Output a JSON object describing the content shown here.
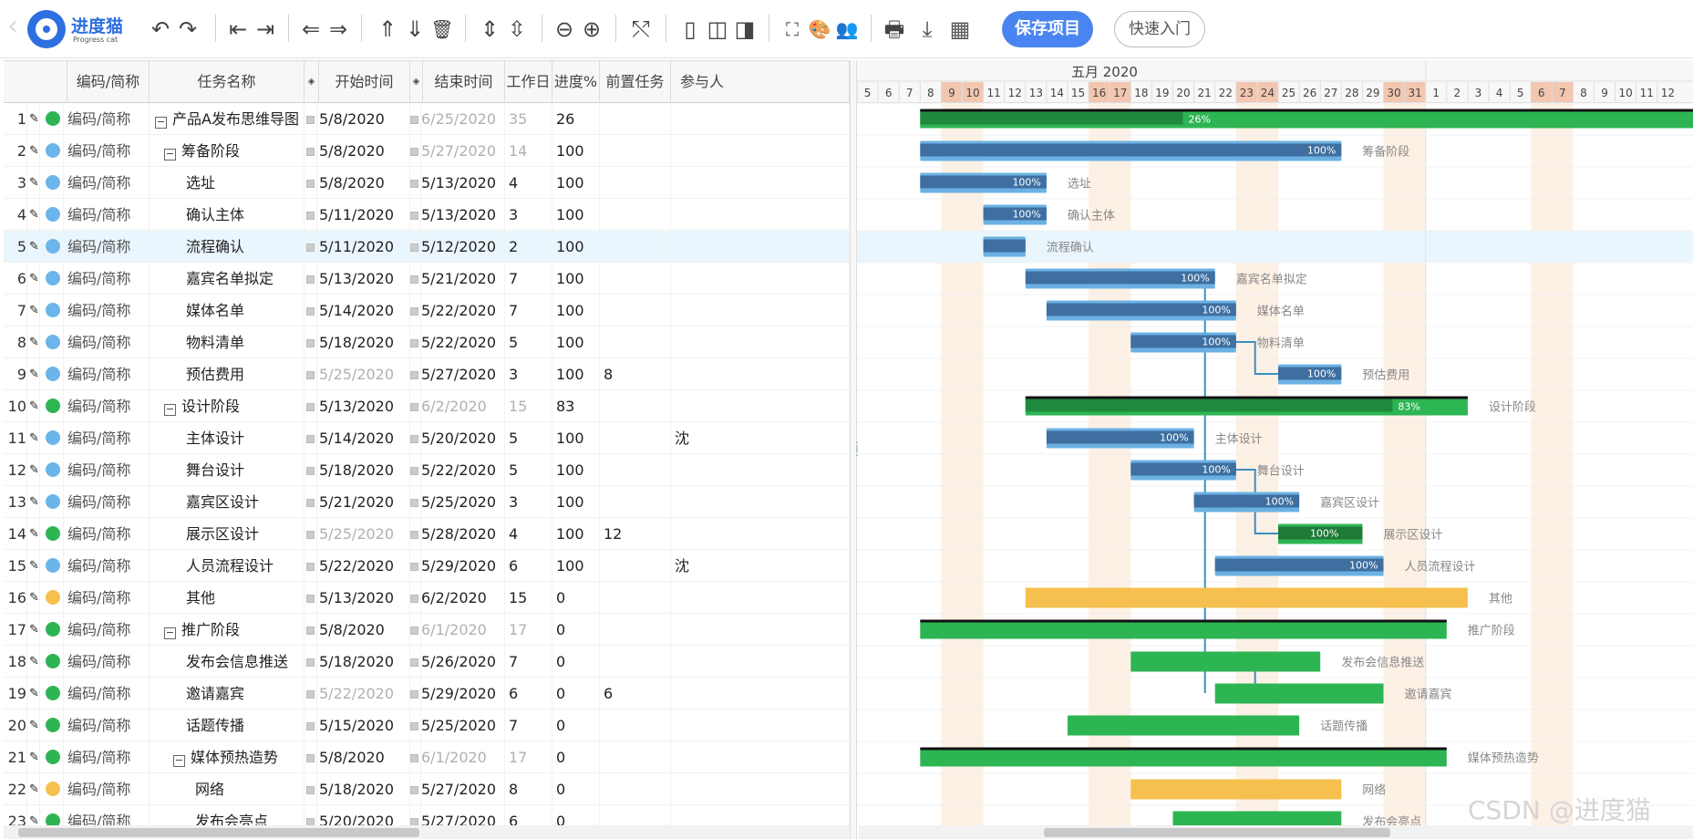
{
  "app": {
    "logo_text": "进度猫",
    "logo_sub": "Progress cat"
  },
  "toolbar": {
    "save_label": "保存项目",
    "quick_label": "快速入门",
    "icons": {
      "undo": "↶",
      "redo": "↷",
      "outdent": "⇤",
      "indent": "⇥",
      "move_left": "⇐",
      "move_right": "⇒",
      "move_up": "⇑",
      "move_down": "⇓",
      "delete": "🗑",
      "expand": "⇕",
      "collapse": "⇳",
      "zoom_out": "⊖",
      "zoom_in": "⊕",
      "link": "⤲",
      "view1": "▯",
      "view2": "◫",
      "view3": "◨",
      "fullscreen": "⛶",
      "palette": "🎨",
      "people": "👥",
      "print": "🖶",
      "download": "⤓",
      "excel": "▦"
    }
  },
  "columns": {
    "code": "编码/简称",
    "name": "任务名称",
    "start": "开始时间",
    "end": "结束时间",
    "duration": "工作日",
    "progress": "进度%",
    "predecessor": "前置任务",
    "participant": "参与人"
  },
  "colors": {
    "green": "#2db553",
    "blue": "#6bb5ea",
    "yellow": "#f5c04e",
    "bar_blue": "#3e6fa0",
    "bar_light": "#6cb1e3",
    "weekend": "#fdf0e4"
  },
  "rows": [
    {
      "num": "1",
      "dot": "green",
      "code": "编码/简称",
      "name": "产品A发布思维导图",
      "indent": 0,
      "exp": true,
      "start": "5/8/2020",
      "start_gray": false,
      "end": "6/25/2020",
      "end_gray": true,
      "dur": "35",
      "dur_gray": true,
      "pct": "26",
      "pre": "",
      "part": ""
    },
    {
      "num": "2",
      "dot": "blue",
      "code": "编码/简称",
      "name": "筹备阶段",
      "indent": 1,
      "exp": true,
      "start": "5/8/2020",
      "start_gray": false,
      "end": "5/27/2020",
      "end_gray": true,
      "dur": "14",
      "dur_gray": true,
      "pct": "100",
      "pre": "",
      "part": ""
    },
    {
      "num": "3",
      "dot": "blue",
      "code": "编码/简称",
      "name": "选址",
      "indent": 2,
      "exp": false,
      "start": "5/8/2020",
      "start_gray": false,
      "end": "5/13/2020",
      "end_gray": false,
      "dur": "4",
      "dur_gray": false,
      "pct": "100",
      "pre": "",
      "part": ""
    },
    {
      "num": "4",
      "dot": "blue",
      "code": "编码/简称",
      "name": "确认主体",
      "indent": 2,
      "exp": false,
      "start": "5/11/2020",
      "start_gray": false,
      "end": "5/13/2020",
      "end_gray": false,
      "dur": "3",
      "dur_gray": false,
      "pct": "100",
      "pre": "",
      "part": ""
    },
    {
      "num": "5",
      "dot": "blue",
      "code": "编码/简称",
      "name": "流程确认",
      "indent": 2,
      "exp": false,
      "start": "5/11/2020",
      "start_gray": false,
      "end": "5/12/2020",
      "end_gray": false,
      "dur": "2",
      "dur_gray": false,
      "pct": "100",
      "pre": "",
      "part": "",
      "sel": true
    },
    {
      "num": "6",
      "dot": "blue",
      "code": "编码/简称",
      "name": "嘉宾名单拟定",
      "indent": 2,
      "exp": false,
      "start": "5/13/2020",
      "start_gray": false,
      "end": "5/21/2020",
      "end_gray": false,
      "dur": "7",
      "dur_gray": false,
      "pct": "100",
      "pre": "",
      "part": ""
    },
    {
      "num": "7",
      "dot": "blue",
      "code": "编码/简称",
      "name": "媒体名单",
      "indent": 2,
      "exp": false,
      "start": "5/14/2020",
      "start_gray": false,
      "end": "5/22/2020",
      "end_gray": false,
      "dur": "7",
      "dur_gray": false,
      "pct": "100",
      "pre": "",
      "part": ""
    },
    {
      "num": "8",
      "dot": "blue",
      "code": "编码/简称",
      "name": "物料清单",
      "indent": 2,
      "exp": false,
      "start": "5/18/2020",
      "start_gray": false,
      "end": "5/22/2020",
      "end_gray": false,
      "dur": "5",
      "dur_gray": false,
      "pct": "100",
      "pre": "",
      "part": ""
    },
    {
      "num": "9",
      "dot": "blue",
      "code": "编码/简称",
      "name": "预估费用",
      "indent": 2,
      "exp": false,
      "start": "5/25/2020",
      "start_gray": true,
      "end": "5/27/2020",
      "end_gray": false,
      "dur": "3",
      "dur_gray": false,
      "pct": "100",
      "pre": "8",
      "part": ""
    },
    {
      "num": "10",
      "dot": "green",
      "code": "编码/简称",
      "name": "设计阶段",
      "indent": 1,
      "exp": true,
      "start": "5/13/2020",
      "start_gray": false,
      "end": "6/2/2020",
      "end_gray": true,
      "dur": "15",
      "dur_gray": true,
      "pct": "83",
      "pre": "",
      "part": ""
    },
    {
      "num": "11",
      "dot": "blue",
      "code": "编码/简称",
      "name": "主体设计",
      "indent": 2,
      "exp": false,
      "start": "5/14/2020",
      "start_gray": false,
      "end": "5/20/2020",
      "end_gray": false,
      "dur": "5",
      "dur_gray": false,
      "pct": "100",
      "pre": "",
      "part": "沈"
    },
    {
      "num": "12",
      "dot": "blue",
      "code": "编码/简称",
      "name": "舞台设计",
      "indent": 2,
      "exp": false,
      "start": "5/18/2020",
      "start_gray": false,
      "end": "5/22/2020",
      "end_gray": false,
      "dur": "5",
      "dur_gray": false,
      "pct": "100",
      "pre": "",
      "part": ""
    },
    {
      "num": "13",
      "dot": "blue",
      "code": "编码/简称",
      "name": "嘉宾区设计",
      "indent": 2,
      "exp": false,
      "start": "5/21/2020",
      "start_gray": false,
      "end": "5/25/2020",
      "end_gray": false,
      "dur": "3",
      "dur_gray": false,
      "pct": "100",
      "pre": "",
      "part": ""
    },
    {
      "num": "14",
      "dot": "green",
      "code": "编码/简称",
      "name": "展示区设计",
      "indent": 2,
      "exp": false,
      "start": "5/25/2020",
      "start_gray": true,
      "end": "5/28/2020",
      "end_gray": false,
      "dur": "4",
      "dur_gray": false,
      "pct": "100",
      "pre": "12",
      "part": ""
    },
    {
      "num": "15",
      "dot": "blue",
      "code": "编码/简称",
      "name": "人员流程设计",
      "indent": 2,
      "exp": false,
      "start": "5/22/2020",
      "start_gray": false,
      "end": "5/29/2020",
      "end_gray": false,
      "dur": "6",
      "dur_gray": false,
      "pct": "100",
      "pre": "",
      "part": "沈"
    },
    {
      "num": "16",
      "dot": "yellow",
      "code": "编码/简称",
      "name": "其他",
      "indent": 2,
      "exp": false,
      "start": "5/13/2020",
      "start_gray": false,
      "end": "6/2/2020",
      "end_gray": false,
      "dur": "15",
      "dur_gray": false,
      "pct": "0",
      "pre": "",
      "part": ""
    },
    {
      "num": "17",
      "dot": "green",
      "code": "编码/简称",
      "name": "推广阶段",
      "indent": 1,
      "exp": true,
      "start": "5/8/2020",
      "start_gray": false,
      "end": "6/1/2020",
      "end_gray": true,
      "dur": "17",
      "dur_gray": true,
      "pct": "0",
      "pre": "",
      "part": ""
    },
    {
      "num": "18",
      "dot": "green",
      "code": "编码/简称",
      "name": "发布会信息推送",
      "indent": 2,
      "exp": false,
      "start": "5/18/2020",
      "start_gray": false,
      "end": "5/26/2020",
      "end_gray": false,
      "dur": "7",
      "dur_gray": false,
      "pct": "0",
      "pre": "",
      "part": ""
    },
    {
      "num": "19",
      "dot": "green",
      "code": "编码/简称",
      "name": "邀请嘉宾",
      "indent": 2,
      "exp": false,
      "start": "5/22/2020",
      "start_gray": true,
      "end": "5/29/2020",
      "end_gray": false,
      "dur": "6",
      "dur_gray": false,
      "pct": "0",
      "pre": "6",
      "part": ""
    },
    {
      "num": "20",
      "dot": "green",
      "code": "编码/简称",
      "name": "话题传播",
      "indent": 2,
      "exp": false,
      "start": "5/15/2020",
      "start_gray": false,
      "end": "5/25/2020",
      "end_gray": false,
      "dur": "7",
      "dur_gray": false,
      "pct": "0",
      "pre": "",
      "part": ""
    },
    {
      "num": "21",
      "dot": "green",
      "code": "编码/简称",
      "name": "媒体预热造势",
      "indent": 2,
      "exp": true,
      "start": "5/8/2020",
      "start_gray": false,
      "end": "6/1/2020",
      "end_gray": true,
      "dur": "17",
      "dur_gray": true,
      "pct": "0",
      "pre": "",
      "part": ""
    },
    {
      "num": "22",
      "dot": "yellow",
      "code": "编码/简称",
      "name": "网络",
      "indent": 3,
      "exp": false,
      "start": "5/18/2020",
      "start_gray": false,
      "end": "5/27/2020",
      "end_gray": false,
      "dur": "8",
      "dur_gray": false,
      "pct": "0",
      "pre": "",
      "part": ""
    },
    {
      "num": "23",
      "dot": "green",
      "code": "编码/简称",
      "name": "发布会亮点",
      "indent": 3,
      "exp": false,
      "start": "5/20/2020",
      "start_gray": false,
      "end": "5/27/2020",
      "end_gray": false,
      "dur": "6",
      "dur_gray": false,
      "pct": "0",
      "pre": "",
      "part": ""
    }
  ],
  "timeline": {
    "month_label": "五月 2020",
    "days": [
      "5",
      "6",
      "7",
      "8",
      "9",
      "10",
      "11",
      "12",
      "13",
      "14",
      "15",
      "16",
      "17",
      "18",
      "19",
      "20",
      "21",
      "22",
      "23",
      "24",
      "25",
      "26",
      "27",
      "28",
      "29",
      "30",
      "31",
      "1",
      "2",
      "3",
      "4",
      "5",
      "6",
      "7",
      "8",
      "9",
      "10",
      "11",
      "12"
    ],
    "weekend_days": [
      "9",
      "10",
      "16",
      "17",
      "23",
      "24",
      "30",
      "31",
      "6",
      "7"
    ]
  },
  "gantt_bars": [
    {
      "row": 0,
      "type": "summary",
      "start": "5/8",
      "end": "6/25",
      "pct": "26%",
      "label": ""
    },
    {
      "row": 1,
      "type": "task",
      "start": "5/8",
      "end": "5/27",
      "pct": "100%",
      "label": "筹备阶段"
    },
    {
      "row": 2,
      "type": "task",
      "start": "5/8",
      "end": "5/13",
      "pct": "100%",
      "label": "选址"
    },
    {
      "row": 3,
      "type": "task",
      "start": "5/11",
      "end": "5/13",
      "pct": "100%",
      "label": "确认主体"
    },
    {
      "row": 4,
      "type": "task",
      "start": "5/11",
      "end": "5/12",
      "pct": "",
      "label": "流程确认"
    },
    {
      "row": 5,
      "type": "task",
      "start": "5/13",
      "end": "5/21",
      "pct": "100%",
      "label": "嘉宾名单拟定"
    },
    {
      "row": 6,
      "type": "task",
      "start": "5/14",
      "end": "5/22",
      "pct": "100%",
      "label": "媒体名单"
    },
    {
      "row": 7,
      "type": "task",
      "start": "5/18",
      "end": "5/22",
      "pct": "100%",
      "label": "物料清单"
    },
    {
      "row": 8,
      "type": "task",
      "start": "5/25",
      "end": "5/27",
      "pct": "100%",
      "label": "预估费用"
    },
    {
      "row": 9,
      "type": "summary",
      "start": "5/13",
      "end": "6/2",
      "pct": "83%",
      "label": "设计阶段"
    },
    {
      "row": 10,
      "type": "task",
      "start": "5/14",
      "end": "5/20",
      "pct": "100%",
      "label": "主体设计"
    },
    {
      "row": 11,
      "type": "task",
      "start": "5/18",
      "end": "5/22",
      "pct": "100%",
      "label": "舞台设计"
    },
    {
      "row": 12,
      "type": "task",
      "start": "5/21",
      "end": "5/25",
      "pct": "100%",
      "label": "嘉宾区设计"
    },
    {
      "row": 13,
      "type": "green",
      "start": "5/25",
      "end": "5/28",
      "pct": "100%",
      "label": "展示区设计"
    },
    {
      "row": 14,
      "type": "task",
      "start": "5/22",
      "end": "5/29",
      "pct": "100%",
      "label": "人员流程设计"
    },
    {
      "row": 15,
      "type": "yellow",
      "start": "5/13",
      "end": "6/2",
      "pct": "",
      "label": "其他"
    },
    {
      "row": 16,
      "type": "gsummary",
      "start": "5/8",
      "end": "6/1",
      "pct": "",
      "label": "推广阶段"
    },
    {
      "row": 17,
      "type": "plain",
      "start": "5/18",
      "end": "5/26",
      "pct": "",
      "label": "发布会信息推送"
    },
    {
      "row": 18,
      "type": "plain",
      "start": "5/22",
      "end": "5/29",
      "pct": "",
      "label": "邀请嘉宾"
    },
    {
      "row": 19,
      "type": "plain",
      "start": "5/15",
      "end": "5/25",
      "pct": "",
      "label": "话题传播"
    },
    {
      "row": 20,
      "type": "gsummary",
      "start": "5/8",
      "end": "6/1",
      "pct": "",
      "label": "媒体预热造势"
    },
    {
      "row": 21,
      "type": "yellow",
      "start": "5/18",
      "end": "5/27",
      "pct": "",
      "label": "网络"
    },
    {
      "row": 22,
      "type": "plain",
      "start": "5/20",
      "end": "5/27",
      "pct": "",
      "label": "发布会亮点"
    }
  ],
  "watermark": "CSDN @进度猫"
}
